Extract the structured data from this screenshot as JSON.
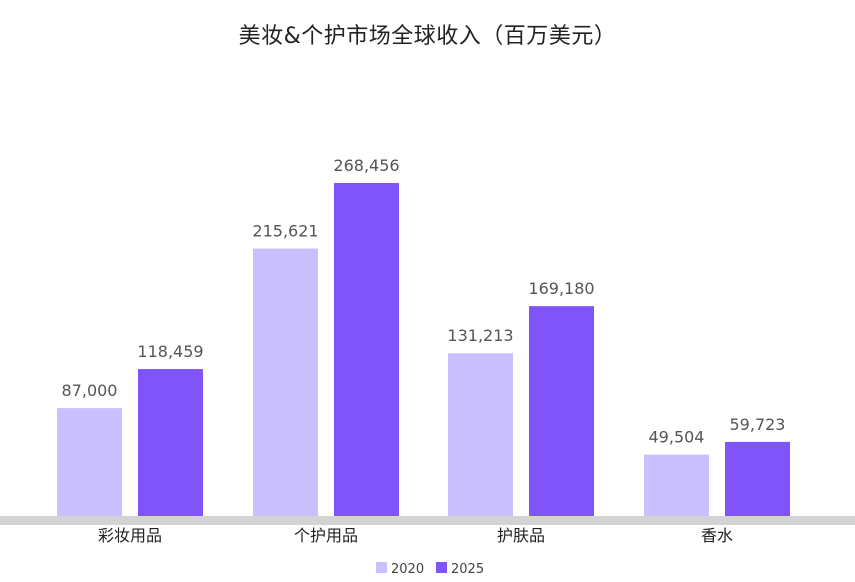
{
  "chart_data": {
    "type": "bar",
    "title": "美妆&个护市场全球收入（百万美元）",
    "categories": [
      "彩妆用品",
      "个护用品",
      "护肤品",
      "香水"
    ],
    "series": [
      {
        "name": "2020",
        "values": [
          87000,
          215621,
          131213,
          49504
        ],
        "labels": [
          "87,000",
          "215,621",
          "131,213",
          "49,504"
        ],
        "color": "#cbc0ff"
      },
      {
        "name": "2025",
        "values": [
          118459,
          268456,
          169180,
          59723
        ],
        "labels": [
          "118,459",
          "268,456",
          "169,180",
          "59,723"
        ],
        "color": "#7f55f9"
      }
    ],
    "ylim": [
      0,
      268456
    ],
    "grid": false,
    "legend": "bottom",
    "baseline_color": "#d3d3d3"
  }
}
